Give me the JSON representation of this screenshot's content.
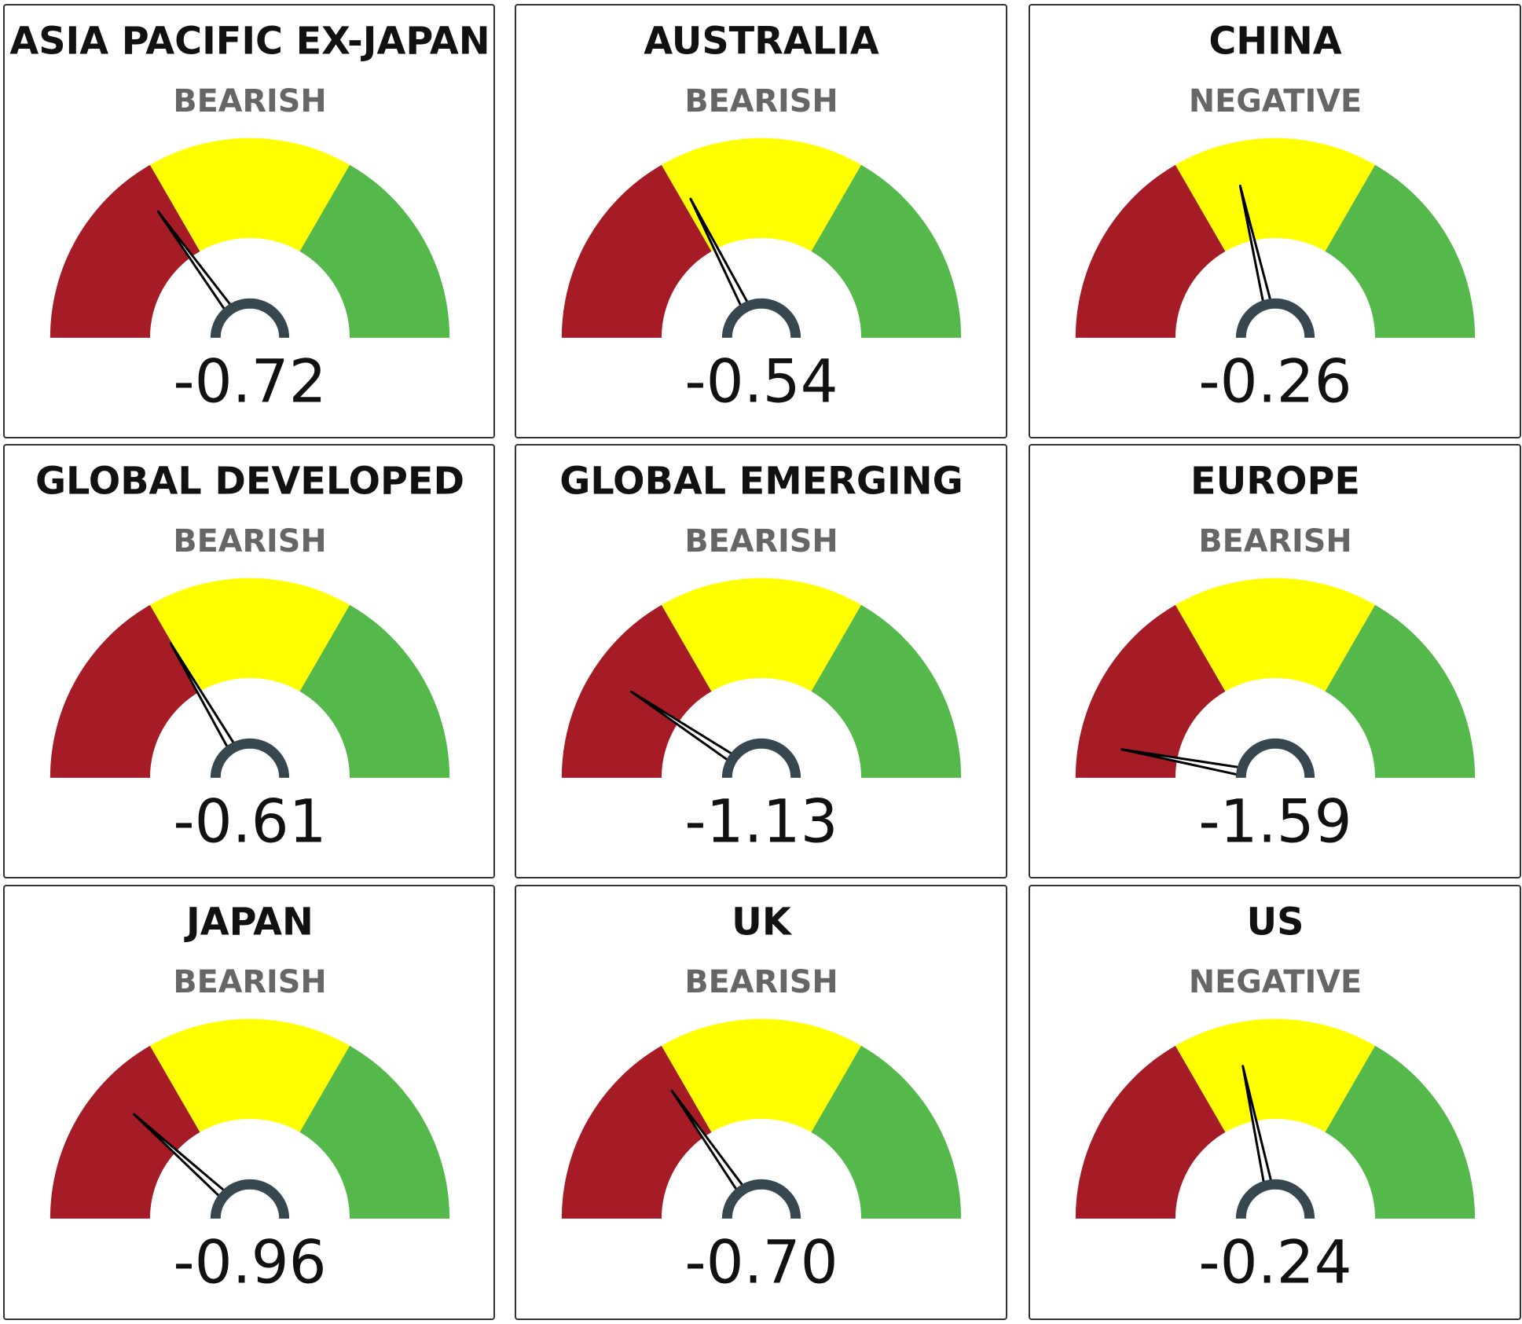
{
  "colors": {
    "red": "#a51c27",
    "yellow": "#ffff00",
    "green": "#55b84a",
    "hub": "#37474f",
    "needle": "#000000",
    "sentiment_text": "#666666"
  },
  "chart_data": [
    {
      "type": "gauge",
      "title": "ASIA PACIFIC EX-JAPAN",
      "label": "BEARISH",
      "value": -0.72,
      "display": "-0.72",
      "range": [
        -1.8,
        1.8
      ]
    },
    {
      "type": "gauge",
      "title": "AUSTRALIA",
      "label": "BEARISH",
      "value": -0.54,
      "display": "-0.54",
      "range": [
        -1.8,
        1.8
      ]
    },
    {
      "type": "gauge",
      "title": "CHINA",
      "label": "NEGATIVE",
      "value": -0.26,
      "display": "-0.26",
      "range": [
        -1.8,
        1.8
      ]
    },
    {
      "type": "gauge",
      "title": "GLOBAL DEVELOPED",
      "label": "BEARISH",
      "value": -0.61,
      "display": "-0.61",
      "range": [
        -1.8,
        1.8
      ]
    },
    {
      "type": "gauge",
      "title": "GLOBAL EMERGING",
      "label": "BEARISH",
      "value": -1.13,
      "display": "-1.13",
      "range": [
        -1.8,
        1.8
      ]
    },
    {
      "type": "gauge",
      "title": "EUROPE",
      "label": "BEARISH",
      "value": -1.59,
      "display": "-1.59",
      "range": [
        -1.8,
        1.8
      ]
    },
    {
      "type": "gauge",
      "title": "JAPAN",
      "label": "BEARISH",
      "value": -0.96,
      "display": "-0.96",
      "range": [
        -1.8,
        1.8
      ]
    },
    {
      "type": "gauge",
      "title": "UK",
      "label": "BEARISH",
      "value": -0.7,
      "display": "-0.70",
      "range": [
        -1.8,
        1.8
      ]
    },
    {
      "type": "gauge",
      "title": "US",
      "label": "NEGATIVE",
      "value": -0.24,
      "display": "-0.24",
      "range": [
        -1.8,
        1.8
      ]
    }
  ]
}
